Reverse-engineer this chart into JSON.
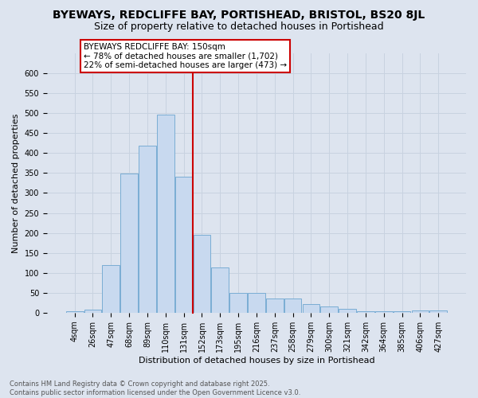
{
  "title1": "BYEWAYS, REDCLIFFE BAY, PORTISHEAD, BRISTOL, BS20 8JL",
  "title2": "Size of property relative to detached houses in Portishead",
  "xlabel": "Distribution of detached houses by size in Portishead",
  "ylabel": "Number of detached properties",
  "categories": [
    "4sqm",
    "26sqm",
    "47sqm",
    "68sqm",
    "89sqm",
    "110sqm",
    "131sqm",
    "152sqm",
    "173sqm",
    "195sqm",
    "216sqm",
    "237sqm",
    "258sqm",
    "279sqm",
    "300sqm",
    "321sqm",
    "342sqm",
    "364sqm",
    "385sqm",
    "406sqm",
    "427sqm"
  ],
  "values": [
    4,
    7,
    120,
    348,
    418,
    496,
    340,
    196,
    114,
    50,
    50,
    35,
    35,
    22,
    16,
    10,
    3,
    3,
    3,
    5,
    5
  ],
  "bar_color": "#c8d9ef",
  "bar_edge_color": "#7aadd4",
  "vline_color": "#cc0000",
  "vline_x_idx": 7,
  "annotation_text": "BYEWAYS REDCLIFFE BAY: 150sqm\n← 78% of detached houses are smaller (1,702)\n22% of semi-detached houses are larger (473) →",
  "box_facecolor": "#ffffff",
  "box_edgecolor": "#cc0000",
  "ylim_max": 650,
  "yticks": [
    0,
    50,
    100,
    150,
    200,
    250,
    300,
    350,
    400,
    450,
    500,
    550,
    600
  ],
  "grid_color": "#c8d2e0",
  "bg_color": "#dde4ef",
  "footnote": "Contains HM Land Registry data © Crown copyright and database right 2025.\nContains public sector information licensed under the Open Government Licence v3.0.",
  "title_fontsize": 10,
  "subtitle_fontsize": 9,
  "ylabel_fontsize": 8,
  "xlabel_fontsize": 8,
  "tick_fontsize": 7,
  "annot_fontsize": 7.5,
  "footnote_fontsize": 6
}
